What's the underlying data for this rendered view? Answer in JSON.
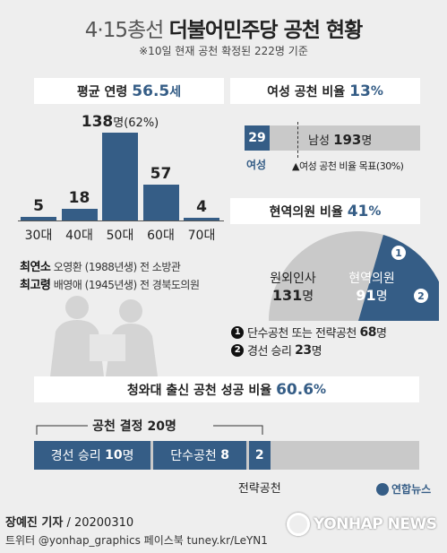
{
  "header": {
    "title_part1": "4·15총선",
    "title_part2": "더불어민주당 공천 현황",
    "subtitle": "※10일 현재 공천 확정된 222명 기준"
  },
  "age_section": {
    "banner_label": "평균 연령",
    "banner_value": "56.5",
    "banner_unit": "세",
    "oldest_label": "최연소",
    "oldest_text": "오영환 (1988년생) 전 소방관",
    "eldest_label": "최고령",
    "eldest_text": "배영애 (1945년생) 전 경북도의원"
  },
  "women_section": {
    "banner_label": "여성 공천 비율",
    "banner_value": "13",
    "banner_unit": "%",
    "women_count": "29",
    "women_label": "여성",
    "men_label": "남성",
    "men_count": "193",
    "men_unit": "명",
    "target_note": "▲여성 공천 비율 목표(30%)"
  },
  "incumbent_section": {
    "banner_label": "현역의원 비율",
    "banner_value": "41",
    "banner_unit": "%",
    "outside_label": "원외인사",
    "outside_count": "131",
    "outside_unit": "명",
    "inc_label": "현역의원",
    "inc_count": "91",
    "inc_unit": "명",
    "marker1": "1",
    "marker2": "2",
    "legend1_text": "단수공천 또는 전략공천",
    "legend1_count": "68",
    "legend1_unit": "명",
    "legend2_text": "경선 승리",
    "legend2_count": "23",
    "legend2_unit": "명"
  },
  "bluehouse_section": {
    "banner_label": "청와대 출신 공천 성공 비율",
    "banner_value": "60.6",
    "banner_unit": "%",
    "decision_label": "공천 결정",
    "decision_count": "20",
    "decision_unit": "명",
    "seg1_label": "경선 승리",
    "seg1_value": "10",
    "seg1_unit": "명",
    "seg2_label": "단수공천",
    "seg2_value": "8",
    "seg3_value": "2",
    "seg3_caption": "전략공천"
  },
  "footer": {
    "author": "장예진 기자",
    "date": " / 20200310",
    "social": "트위터 @yonhap_graphics  페이스북 tuney.kr/LeYN1",
    "brand_small": "연합뉴스",
    "brand_large": "YONHAP NEWS"
  },
  "colors": {
    "accent": "#355d86",
    "background": "#eeeeee",
    "gray_bar": "#c9c9c9"
  },
  "chart_data": [
    {
      "type": "bar",
      "title": "평균 연령 56.5세",
      "categories": [
        "30대",
        "40대",
        "50대",
        "60대",
        "70대"
      ],
      "values": [
        5,
        18,
        138,
        57,
        4
      ],
      "value_labels": [
        "5",
        "18",
        "138명(62%)",
        "57",
        "4"
      ],
      "ylim": [
        0,
        138
      ]
    },
    {
      "type": "bar",
      "title": "여성 공천 비율 13%",
      "categories": [
        "여성",
        "남성"
      ],
      "values": [
        29,
        193
      ],
      "target_percent": 30
    },
    {
      "type": "pie",
      "title": "현역의원 비율 41%",
      "categories": [
        "원외인사",
        "현역의원"
      ],
      "values": [
        131,
        91
      ],
      "sub_breakdown": {
        "단수공천 또는 전략공천": 68,
        "경선 승리": 23
      }
    },
    {
      "type": "bar",
      "title": "청와대 출신 공천 성공 비율 60.6%",
      "categories": [
        "경선 승리",
        "단수공천",
        "전략공천"
      ],
      "values": [
        10,
        8,
        2
      ],
      "total": 20
    }
  ]
}
